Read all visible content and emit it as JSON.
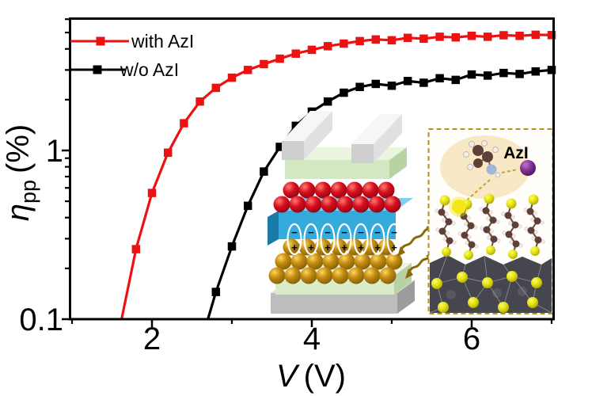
{
  "figure": {
    "background": "#ffffff",
    "frame_color": "#000000"
  },
  "axes": {
    "x": {
      "label_symbol": "V",
      "label_unit": "(V)",
      "scale": "linear",
      "major_ticks": [
        2,
        4,
        6
      ],
      "major_tick_labels": [
        "2",
        "4",
        "6"
      ],
      "minor_ticks": [
        1,
        3,
        5,
        7
      ]
    },
    "y": {
      "label_symbol": "η",
      "label_subscript": "pp",
      "label_unit": "(%)",
      "scale": "log",
      "major_ticks": [
        1,
        0.1
      ],
      "major_tick_labels": [
        "1",
        "0.1"
      ],
      "minor_ticks": [
        0.2,
        0.3,
        0.4,
        0.5,
        0.6,
        0.7,
        0.8,
        0.9,
        2,
        3,
        4,
        5,
        6
      ]
    }
  },
  "legend": {
    "entries": [
      {
        "label": "with AzI",
        "color": "#ed1111"
      },
      {
        "label": "w/o AzI",
        "color": "#000000"
      }
    ]
  },
  "chart_data": {
    "type": "line",
    "title": "",
    "xlabel": "V (V)",
    "ylabel": "η_pp (%)",
    "x_scale": "linear",
    "y_scale": "log",
    "xlim": [
      0.97,
      7.03
    ],
    "ylim": [
      0.1,
      6.08
    ],
    "legend_position": "top-left",
    "grid": false,
    "series": [
      {
        "name": "w/o AzI",
        "color": "#000000",
        "marker": "square",
        "starts_at_axis": true,
        "x": [
          2.7,
          2.8,
          3.0,
          3.2,
          3.4,
          3.6,
          3.8,
          4.0,
          4.2,
          4.4,
          4.6,
          4.8,
          5.0,
          5.2,
          5.4,
          5.6,
          5.8,
          6.0,
          6.2,
          6.4,
          6.6,
          6.8,
          7.0
        ],
        "y": [
          0.1,
          0.145,
          0.27,
          0.47,
          0.75,
          1.05,
          1.4,
          1.7,
          1.95,
          2.2,
          2.38,
          2.48,
          2.42,
          2.58,
          2.52,
          2.68,
          2.62,
          2.82,
          2.78,
          2.88,
          2.84,
          2.94,
          3.0
        ]
      },
      {
        "name": "with AzI",
        "color": "#ed1111",
        "marker": "square",
        "starts_at_axis": true,
        "x": [
          1.62,
          1.8,
          2.0,
          2.2,
          2.4,
          2.6,
          2.8,
          3.0,
          3.2,
          3.4,
          3.6,
          3.8,
          4.0,
          4.2,
          4.4,
          4.6,
          4.8,
          5.0,
          5.2,
          5.4,
          5.6,
          5.8,
          6.0,
          6.2,
          6.4,
          6.6,
          6.8,
          7.0
        ],
        "y": [
          0.1,
          0.26,
          0.56,
          0.97,
          1.45,
          1.95,
          2.35,
          2.7,
          3.0,
          3.25,
          3.5,
          3.75,
          3.95,
          4.15,
          4.3,
          4.45,
          4.55,
          4.5,
          4.65,
          4.6,
          4.72,
          4.68,
          4.78,
          4.72,
          4.82,
          4.78,
          4.85,
          4.83
        ]
      }
    ]
  },
  "device": {
    "dipole_minus": "−",
    "dipole_plus": "+",
    "dipole_count": 7
  },
  "inset": {
    "label": "AzI",
    "label_color": "#e31b1c",
    "border_color": "#b5901a"
  }
}
